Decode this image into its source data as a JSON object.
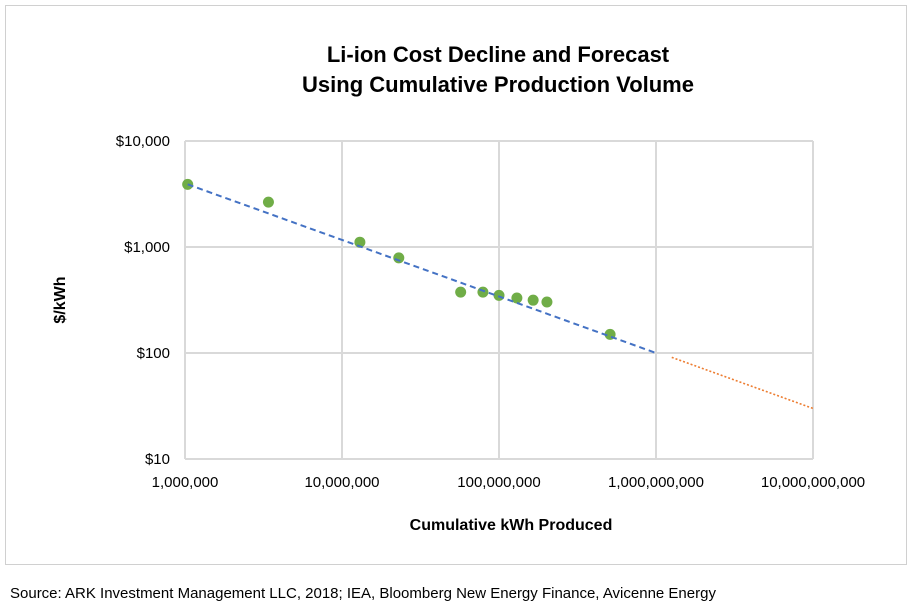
{
  "chart_data": {
    "type": "scatter",
    "title": [
      "Li-ion Cost Decline and Forecast",
      "Using Cumulative Production Volume"
    ],
    "xlabel": "Cumulative kWh Produced",
    "ylabel": "$/kWh",
    "x_scale": "log",
    "y_scale": "log",
    "xlim": [
      1000000,
      10000000000
    ],
    "ylim": [
      10,
      10000
    ],
    "grid": true,
    "x_ticks": [
      1000000,
      10000000,
      100000000,
      1000000000,
      10000000000
    ],
    "x_tick_labels": [
      "1,000,000",
      "10,000,000",
      "100,000,000",
      "1,000,000,000",
      "10,000,000,000"
    ],
    "y_ticks": [
      10,
      100,
      1000,
      10000
    ],
    "y_tick_labels": [
      "$10",
      "$100",
      "$1,000",
      "$10,000"
    ],
    "series": [
      {
        "kind": "points",
        "color": "#70ad47",
        "points": [
          [
            1040000,
            3900
          ],
          [
            3400000,
            2650
          ],
          [
            13000000,
            1110
          ],
          [
            23000000,
            790
          ],
          [
            57000000,
            375
          ],
          [
            79000000,
            375
          ],
          [
            100000000,
            350
          ],
          [
            130000000,
            330
          ],
          [
            165000000,
            315
          ],
          [
            202000000,
            303
          ],
          [
            510000000,
            150
          ]
        ]
      },
      {
        "kind": "trendline",
        "style": "dashed",
        "color": "#4472c4",
        "points": [
          [
            1040000,
            3900
          ],
          [
            1000000000,
            100
          ]
        ]
      },
      {
        "kind": "forecast",
        "style": "dotted",
        "color": "#ed7d31",
        "points": [
          [
            1260000000,
            91
          ],
          [
            10000000000,
            30
          ]
        ]
      }
    ]
  },
  "source": "Source: ARK Investment Management LLC, 2018; IEA, Bloomberg New Energy Finance, Avicenne Energy"
}
